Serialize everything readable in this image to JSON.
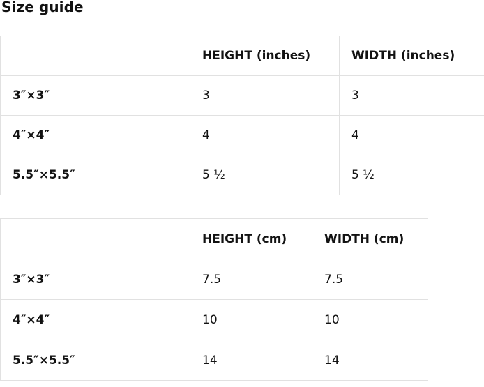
{
  "page": {
    "title": "Size guide"
  },
  "colors": {
    "text": "#121212",
    "table_border": "#e1e1e1",
    "background": "#ffffff"
  },
  "tables": [
    {
      "name": "inches",
      "headers": [
        "",
        "HEIGHT (inches)",
        "WIDTH (inches)"
      ],
      "rows": [
        {
          "label": "3″×3″",
          "height": "3",
          "width": "3"
        },
        {
          "label": "4″×4″",
          "height": "4",
          "width": "4"
        },
        {
          "label": "5.5″×5.5″",
          "height": "5 ½",
          "width": "5 ½"
        }
      ]
    },
    {
      "name": "cm",
      "headers": [
        "",
        "HEIGHT (cm)",
        "WIDTH (cm)"
      ],
      "rows": [
        {
          "label": "3″×3″",
          "height": "7.5",
          "width": "7.5"
        },
        {
          "label": "4″×4″",
          "height": "10",
          "width": "10"
        },
        {
          "label": "5.5″×5.5″",
          "height": "14",
          "width": "14"
        }
      ]
    }
  ]
}
